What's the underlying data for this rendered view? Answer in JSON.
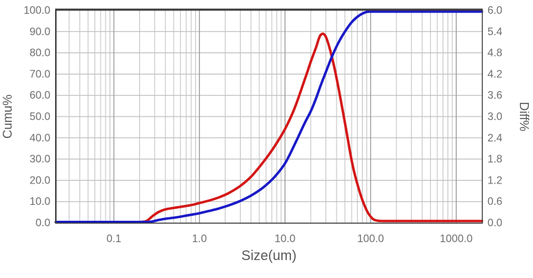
{
  "colors": {
    "cumu_curve": "#1a1ac8",
    "diff_curve": "#d41717",
    "grid_minor": "#c0c0c0",
    "grid_major": "#999999",
    "grid_horizontal": "#b3b3b3",
    "axis_border": "#3a3a3a",
    "tick_text": "#6e6e6e",
    "title_text": "#5a5a5a",
    "background": "#ffffff"
  },
  "chart_data": {
    "type": "line",
    "title": "",
    "xlabel": "Size(um)",
    "ylabel_left": "Cumu%",
    "ylabel_right": "Diff%",
    "x_scale": "log",
    "x_range": [
      0.021,
      2000
    ],
    "x_ticks": [
      "0.1",
      "1.0",
      "10.0",
      "100.0",
      "1000.0"
    ],
    "y_left_range": [
      0,
      100
    ],
    "y_left_ticks": [
      "100.0",
      "90.0",
      "80.0",
      "70.0",
      "60.0",
      "50.0",
      "40.0",
      "30.0",
      "20.0",
      "10.0",
      "0.0"
    ],
    "y_right_range": [
      0,
      6
    ],
    "y_right_ticks": [
      "6.0",
      "5.4",
      "4.8",
      "4.2",
      "3.6",
      "3.0",
      "2.4",
      "1.8",
      "1.2",
      "0.6",
      "0.0"
    ],
    "grid": true,
    "legend": "none",
    "series": [
      {
        "name": "Diff%",
        "axis": "right",
        "color_key": "diff_curve",
        "x": [
          0.021,
          0.05,
          0.1,
          0.15,
          0.2,
          0.24,
          0.28,
          0.33,
          0.4,
          0.5,
          0.6,
          0.8,
          1.0,
          1.3,
          1.7,
          2.2,
          3.0,
          4.0,
          5.5,
          7.5,
          10,
          13,
          17,
          20,
          23,
          26,
          30,
          36,
          43,
          52,
          62,
          75,
          90,
          105,
          120,
          140,
          170,
          250,
          400,
          700,
          1200,
          2000
        ],
        "y": [
          0,
          0,
          0,
          0,
          0,
          0.05,
          0.18,
          0.3,
          0.38,
          0.42,
          0.45,
          0.5,
          0.56,
          0.63,
          0.72,
          0.84,
          1.04,
          1.3,
          1.7,
          2.15,
          2.65,
          3.25,
          4.05,
          4.55,
          4.95,
          5.3,
          5.25,
          4.6,
          3.7,
          2.6,
          1.6,
          0.85,
          0.35,
          0.12,
          0.06,
          0.05,
          0.05,
          0.05,
          0.05,
          0.05,
          0.05,
          0.05
        ]
      },
      {
        "name": "Cumu%",
        "axis": "left",
        "color_key": "cumu_curve",
        "x": [
          0.021,
          0.05,
          0.1,
          0.15,
          0.2,
          0.24,
          0.28,
          0.33,
          0.4,
          0.5,
          0.6,
          0.8,
          1.0,
          1.3,
          1.7,
          2.2,
          3.0,
          4.0,
          5.5,
          7.5,
          10,
          13,
          17,
          20,
          23,
          26,
          30,
          36,
          43,
          52,
          62,
          75,
          90,
          105,
          120,
          140,
          170,
          250,
          400,
          700,
          1200,
          2000
        ],
        "y": [
          0,
          0,
          0,
          0,
          0,
          0.1,
          0.6,
          1.3,
          1.9,
          2.4,
          2.9,
          3.8,
          4.5,
          5.6,
          6.8,
          8.2,
          10.3,
          12.8,
          16.5,
          21.5,
          28,
          37,
          47,
          52.5,
          58.5,
          64.5,
          71,
          79,
          85.5,
          91,
          95,
          97.8,
          99.3,
          99.8,
          100,
          100,
          100,
          100,
          100,
          100,
          100,
          100
        ]
      }
    ]
  }
}
